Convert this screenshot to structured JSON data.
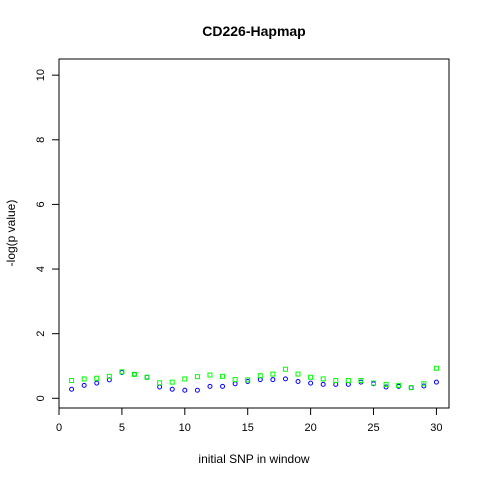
{
  "chart_data": {
    "type": "scatter",
    "title": "CD226-Hapmap",
    "xlabel": "initial SNP in window",
    "ylabel": "-log(p value)",
    "xlim": [
      0,
      31
    ],
    "ylim": [
      -0.3,
      10.5
    ],
    "x_ticks": [
      0,
      5,
      10,
      15,
      20,
      25,
      30
    ],
    "y_ticks": [
      0,
      2,
      4,
      6,
      8,
      10
    ],
    "grid": false,
    "series": [
      {
        "color": "#0000ff",
        "marker": "circle",
        "x": [
          1,
          2,
          3,
          4,
          5,
          6,
          7,
          8,
          9,
          10,
          11,
          12,
          13,
          14,
          15,
          16,
          17,
          18,
          19,
          20,
          21,
          22,
          23,
          24,
          25,
          26,
          27,
          28,
          29,
          30
        ],
        "y": [
          0.28,
          0.4,
          0.47,
          0.57,
          0.8,
          0.74,
          0.65,
          0.35,
          0.28,
          0.25,
          0.25,
          0.37,
          0.37,
          0.45,
          0.52,
          0.58,
          0.58,
          0.6,
          0.52,
          0.47,
          0.43,
          0.43,
          0.43,
          0.5,
          0.45,
          0.35,
          0.37,
          0.33,
          0.38,
          0.5
        ]
      },
      {
        "color": "#00ff00",
        "marker": "square",
        "x": [
          1,
          2,
          3,
          4,
          5,
          6,
          7,
          8,
          9,
          10,
          11,
          12,
          13,
          14,
          15,
          16,
          17,
          18,
          19,
          20,
          21,
          22,
          23,
          24,
          25,
          26,
          27,
          28,
          29,
          30
        ],
        "y": [
          0.55,
          0.6,
          0.62,
          0.68,
          0.82,
          0.74,
          0.65,
          0.48,
          0.5,
          0.6,
          0.67,
          0.72,
          0.68,
          0.58,
          0.57,
          0.7,
          0.75,
          0.9,
          0.75,
          0.65,
          0.6,
          0.55,
          0.55,
          0.55,
          0.47,
          0.43,
          0.4,
          0.33,
          0.45,
          0.93
        ]
      }
    ]
  }
}
